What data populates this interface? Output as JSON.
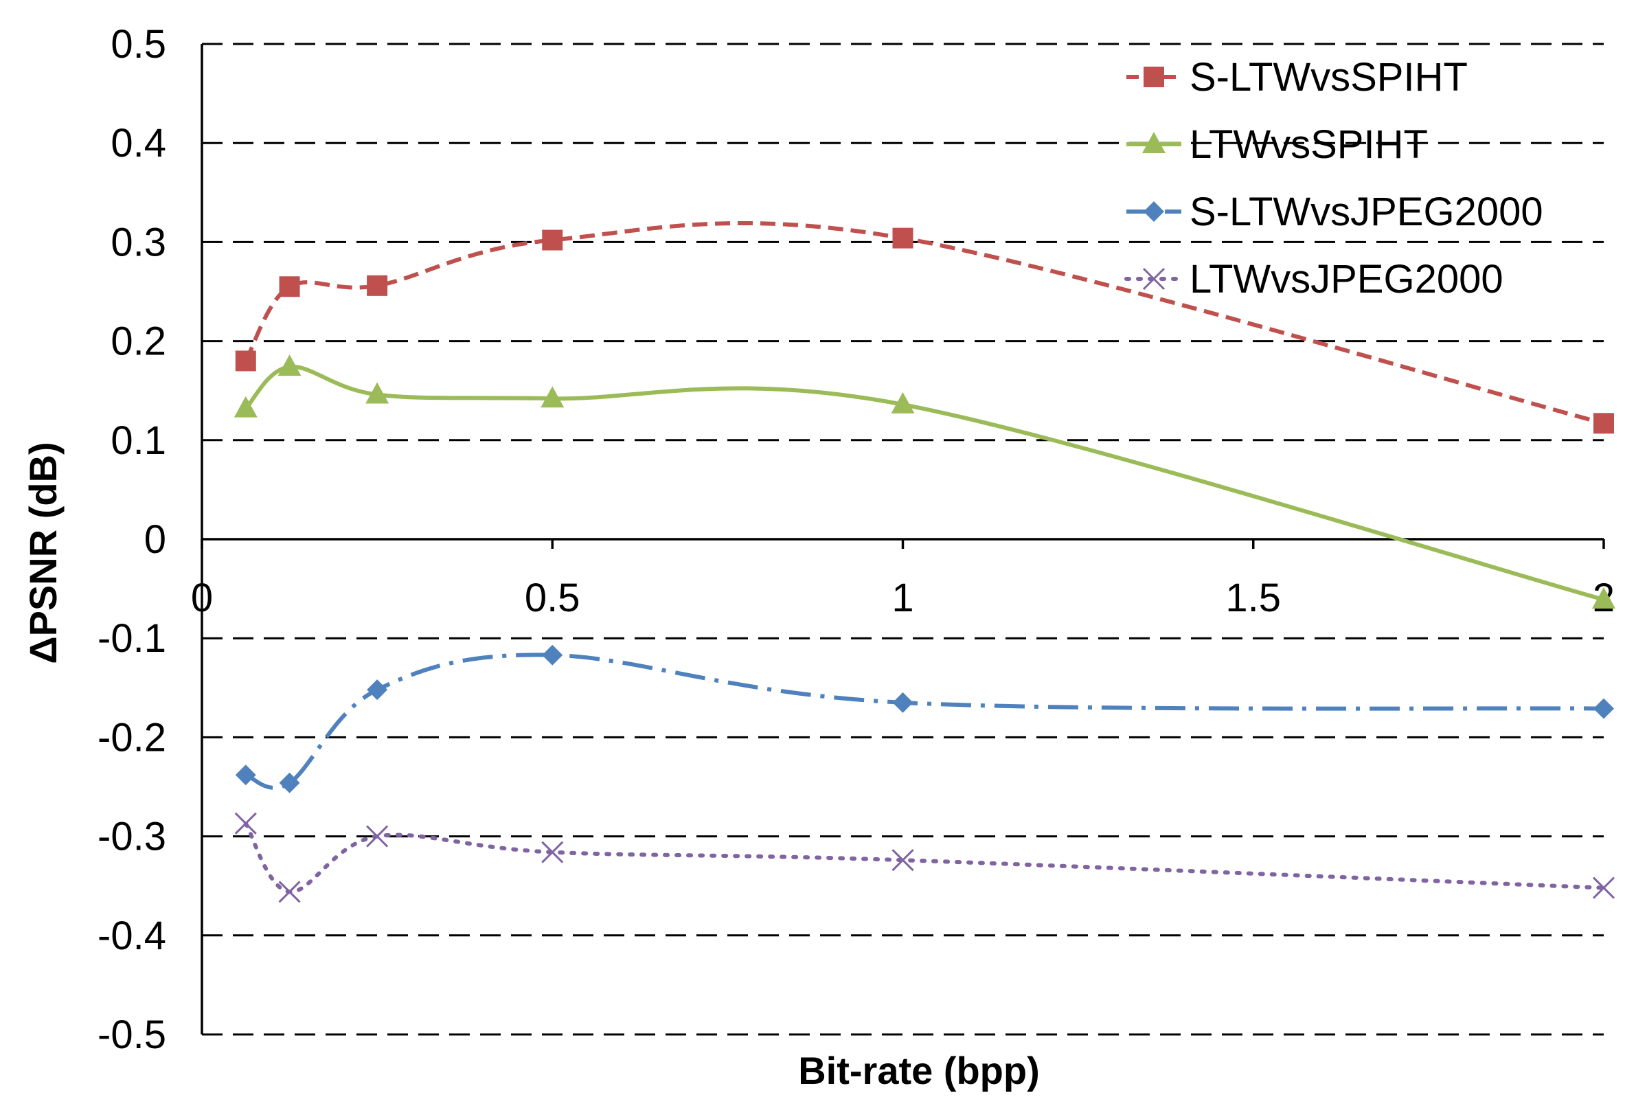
{
  "chart_data": {
    "type": "line",
    "title": "",
    "xlabel": "Bit-rate (bpp)",
    "ylabel": "ΔPSNR (dB)",
    "xlim": [
      0,
      2
    ],
    "ylim": [
      -0.5,
      0.5
    ],
    "xticks": [
      0,
      0.5,
      1,
      1.5,
      2
    ],
    "xtick_labels": [
      "0",
      "0.5",
      "1",
      "1.5",
      "2"
    ],
    "yticks": [
      0.5,
      0.4,
      0.3,
      0.2,
      0.1,
      0,
      -0.1,
      -0.2,
      -0.3,
      -0.4,
      -0.5
    ],
    "ytick_labels": [
      "0.5",
      "0.4",
      "0.3",
      "0.2",
      "0.1",
      "0",
      "-0.1",
      "-0.2",
      "-0.3",
      "-0.4",
      "-0.5"
    ],
    "grid": true,
    "legend_position": "top-right",
    "x": [
      0.0625,
      0.125,
      0.25,
      0.5,
      1,
      2
    ],
    "series": [
      {
        "name": "S-LTWvsSPIHT",
        "values": [
          0.18,
          0.255,
          0.256,
          0.302,
          0.304,
          0.117
        ],
        "color": "#C0504D",
        "marker": "square",
        "dash": "dashed"
      },
      {
        "name": "LTWvsSPIHT",
        "values": [
          0.132,
          0.174,
          0.146,
          0.142,
          0.136,
          -0.061
        ],
        "color": "#9BBB59",
        "marker": "triangle",
        "dash": "solid"
      },
      {
        "name": "S-LTWvsJPEG2000",
        "values": [
          -0.238,
          -0.246,
          -0.152,
          -0.117,
          -0.165,
          -0.171
        ],
        "color": "#4F81BD",
        "marker": "diamond",
        "dash": "dashdot"
      },
      {
        "name": "LTWvsJPEG2000",
        "values": [
          -0.287,
          -0.356,
          -0.3,
          -0.316,
          -0.324,
          -0.352
        ],
        "color": "#8064A2",
        "marker": "x",
        "dash": "dotted"
      }
    ]
  }
}
